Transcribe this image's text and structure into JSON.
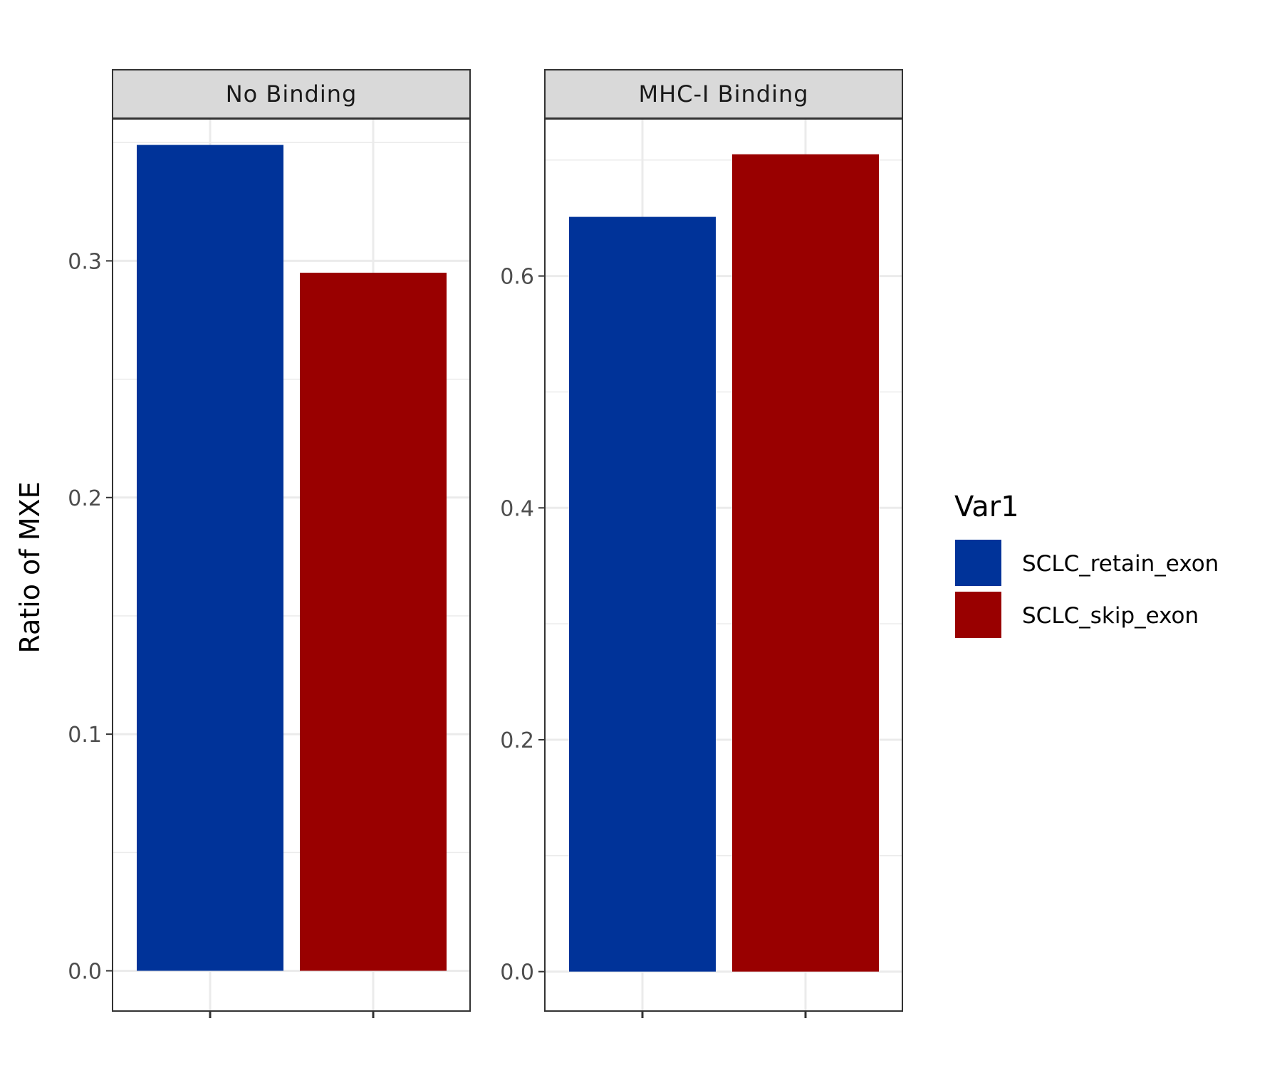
{
  "chart_data": {
    "type": "bar",
    "ylabel": "Ratio of MXE",
    "xlabel": "",
    "grid": true,
    "legend": {
      "title": "Var1",
      "position": "right",
      "entries": [
        {
          "label": "SCLC_retain_exon",
          "color": "#003399"
        },
        {
          "label": "SCLC_skip_exon",
          "color": "#990000"
        }
      ]
    },
    "panels": [
      {
        "title": "No Binding",
        "categories": [
          "SCLC_retain_exon",
          "SCLC_skip_exon"
        ],
        "values": [
          0.349,
          0.295
        ],
        "ylim": [
          -0.017,
          0.36
        ],
        "yticks": [
          0.0,
          0.1,
          0.2,
          0.3
        ],
        "ytick_labels": [
          "0.0",
          "0.1",
          "0.2",
          "0.3"
        ]
      },
      {
        "title": "MHC-I Binding",
        "categories": [
          "SCLC_retain_exon",
          "SCLC_skip_exon"
        ],
        "values": [
          0.651,
          0.705
        ],
        "ylim": [
          -0.034,
          0.7355
        ],
        "yticks": [
          0.0,
          0.2,
          0.4,
          0.6
        ],
        "ytick_labels": [
          "0.0",
          "0.2",
          "0.4",
          "0.6"
        ]
      }
    ]
  }
}
